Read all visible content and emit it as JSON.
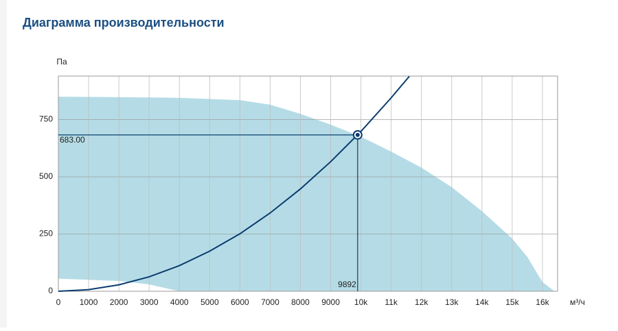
{
  "header": {
    "title": "Диаграмма производительности"
  },
  "chart_data": {
    "type": "line",
    "x_label": "м³/ч",
    "y_label": "Па",
    "xlim": [
      0,
      16500
    ],
    "ylim": [
      0,
      940
    ],
    "xticks": [
      0,
      1000,
      2000,
      3000,
      4000,
      5000,
      6000,
      7000,
      8000,
      9000,
      {
        "value": 10000,
        "label": "10k"
      },
      {
        "value": 11000,
        "label": "11k"
      },
      {
        "value": 12000,
        "label": "12k"
      },
      {
        "value": 13000,
        "label": "13k"
      },
      {
        "value": 14000,
        "label": "14k"
      },
      {
        "value": 15000,
        "label": "15k"
      },
      {
        "value": 16000,
        "label": "16k"
      }
    ],
    "yticks": [
      0,
      250,
      500,
      750
    ],
    "grid": true,
    "series": [
      {
        "color": "#b5dce6",
        "fill": true,
        "x": [
          0,
          2000,
          4000,
          6000,
          7000,
          8000,
          9000,
          10000,
          11000,
          12000,
          13000,
          14000,
          15000,
          15500,
          16000,
          16400
        ],
        "values": [
          850,
          848,
          845,
          835,
          815,
          775,
          728,
          675,
          610,
          540,
          455,
          350,
          230,
          150,
          40,
          0
        ]
      },
      {
        "color": "#ffffff",
        "fill": true,
        "x": [
          0,
          2000,
          3000,
          4000
        ],
        "values": [
          55,
          45,
          30,
          0
        ]
      },
      {
        "color": "#0b3b6e",
        "fill": false,
        "x": [
          0,
          1000,
          2000,
          3000,
          4000,
          5000,
          6000,
          7000,
          8000,
          9000,
          10000,
          11000,
          11600
        ],
        "values": [
          0,
          7,
          28,
          63,
          112,
          175,
          251,
          342,
          447,
          566,
          698,
          845,
          939
        ]
      }
    ],
    "point": {
      "x": 9892,
      "y": 683,
      "y_label": "683.00",
      "color": "#0b3b6e"
    }
  }
}
